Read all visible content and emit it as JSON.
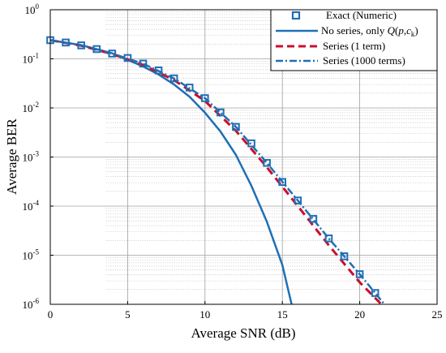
{
  "chart_data": {
    "type": "line",
    "title": "",
    "xlabel": "Average SNR (dB)",
    "ylabel": "Average BER",
    "xlim": [
      0,
      25
    ],
    "ylim": [
      1e-06,
      1
    ],
    "yscale": "log",
    "grid": true,
    "legend_position": "top-right",
    "x_ticks": [
      0,
      5,
      10,
      15,
      20,
      25
    ],
    "y_ticks": [
      {
        "value": 1,
        "mantissa": "10",
        "exp": "0"
      },
      {
        "value": 0.1,
        "mantissa": "10",
        "exp": "-1"
      },
      {
        "value": 0.01,
        "mantissa": "10",
        "exp": "-2"
      },
      {
        "value": 0.001,
        "mantissa": "10",
        "exp": "-3"
      },
      {
        "value": 0.0001,
        "mantissa": "10",
        "exp": "-4"
      },
      {
        "value": 1e-05,
        "mantissa": "10",
        "exp": "-5"
      },
      {
        "value": 1e-06,
        "mantissa": "10",
        "exp": "-6"
      }
    ],
    "series": [
      {
        "name": "Exact (Numeric)",
        "style": "markers",
        "color": "#1f6fb4",
        "x": [
          0,
          1,
          2,
          3,
          4,
          5,
          6,
          7,
          8,
          9,
          10,
          11,
          12,
          13,
          14,
          15,
          16,
          17,
          18,
          19,
          20,
          21
        ],
        "y": [
          0.24,
          0.215,
          0.188,
          0.158,
          0.128,
          0.104,
          0.08,
          0.058,
          0.04,
          0.026,
          0.0158,
          0.0081,
          0.0041,
          0.0019,
          0.00076,
          0.00031,
          0.00013,
          5.5e-05,
          2.2e-05,
          9.5e-06,
          4.1e-06,
          1.7e-06
        ]
      },
      {
        "name": "No series, only Q(p,c_k)",
        "style": "solid",
        "color": "#1f6fb4",
        "x": [
          0,
          2,
          4,
          6,
          7,
          8,
          9,
          10,
          11,
          12,
          13,
          14,
          15,
          15.6
        ],
        "y": [
          0.24,
          0.19,
          0.13,
          0.07,
          0.048,
          0.03,
          0.017,
          0.008,
          0.0033,
          0.0011,
          0.00026,
          4.8e-05,
          6.3e-06,
          1e-06
        ]
      },
      {
        "name": "Series  (1 term)",
        "style": "dashed",
        "color": "#c8102e",
        "x": [
          0,
          2,
          4,
          6,
          8,
          10,
          12,
          14,
          16,
          18,
          20,
          21.4
        ],
        "y": [
          0.24,
          0.185,
          0.125,
          0.075,
          0.037,
          0.0138,
          0.0034,
          0.00062,
          0.0001,
          1.6e-05,
          2.8e-06,
          1e-06
        ]
      },
      {
        "name": "Series (1000 terms)",
        "style": "dashdot",
        "color": "#1f6fb4",
        "x": [
          0,
          2,
          4,
          6,
          8,
          10,
          12,
          14,
          16,
          18,
          20,
          21.6
        ],
        "y": [
          0.24,
          0.188,
          0.128,
          0.08,
          0.04,
          0.0158,
          0.0041,
          0.00076,
          0.00013,
          2.2e-05,
          4.1e-06,
          1e-06
        ]
      }
    ],
    "legend": {
      "entries": [
        {
          "label": "Exact (Numeric)"
        },
        {
          "label_prefix": "No series, only ",
          "label_math": "Q",
          "label_open": "(",
          "label_p": "p",
          "label_comma": ",",
          "label_c": "c",
          "label_sub": "k",
          "label_close": ")"
        },
        {
          "label": "Series  (1 term)"
        },
        {
          "label": "Series (1000 terms)"
        }
      ]
    }
  }
}
